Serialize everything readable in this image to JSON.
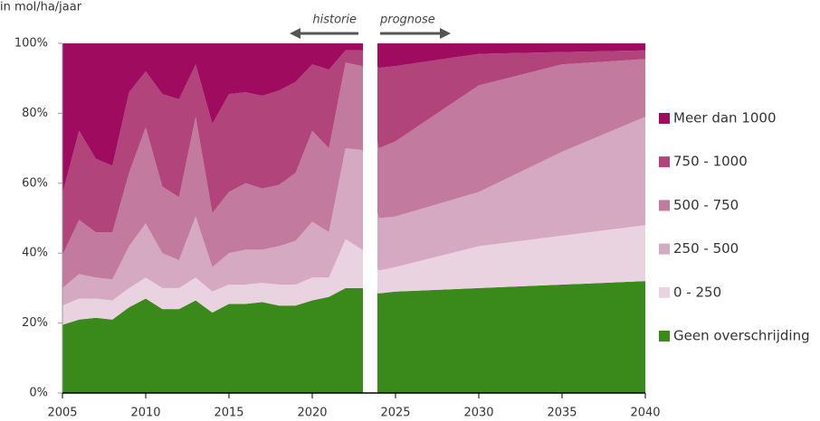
{
  "chart_data": {
    "type": "stacked_area",
    "y_axis_label": "in mol/ha/jaar",
    "annotations": [
      "historie",
      "prognose"
    ],
    "x": [
      2005,
      2006,
      2007,
      2008,
      2009,
      2010,
      2011,
      2012,
      2013,
      2014,
      2015,
      2016,
      2017,
      2018,
      2019,
      2020,
      2021,
      2022,
      2023,
      2024,
      2025,
      2030,
      2035,
      2040
    ],
    "xlim": [
      2005,
      2040
    ],
    "xticks": [
      2005,
      2010,
      2015,
      2020,
      2025,
      2030,
      2035,
      2040
    ],
    "ylim": [
      0,
      100
    ],
    "yticks": [
      {
        "value": 0,
        "label": "0%"
      },
      {
        "value": 20,
        "label": "20%"
      },
      {
        "value": 40,
        "label": "40%"
      },
      {
        "value": 60,
        "label": "60%"
      },
      {
        "value": 80,
        "label": "80%"
      },
      {
        "value": 100,
        "label": "100%"
      }
    ],
    "series": [
      {
        "name": "Geen overschrijding",
        "color": "#3a8a1b",
        "values": [
          19.5,
          21,
          21.5,
          21,
          24.5,
          27,
          24,
          24,
          26.5,
          23,
          25.5,
          25.5,
          26,
          25,
          25,
          26.5,
          27.5,
          30,
          30,
          28.5,
          29,
          30,
          31,
          32
        ]
      },
      {
        "name": "0 - 250",
        "color": "#ead3e0",
        "values": [
          5.5,
          6,
          5.5,
          5.5,
          5.5,
          6,
          6,
          6,
          6.5,
          6,
          5.5,
          5.5,
          5.5,
          6,
          6,
          6.5,
          5.5,
          14,
          11,
          6.5,
          7,
          12,
          14,
          16
        ]
      },
      {
        "name": "250 - 500",
        "color": "#d6a9c3",
        "values": [
          5,
          7,
          6,
          6,
          12,
          15.5,
          10,
          8,
          17.5,
          7,
          9,
          10,
          9.5,
          11,
          12.5,
          16,
          13,
          26,
          28.5,
          15,
          14.5,
          15.5,
          24,
          31
        ]
      },
      {
        "name": "500 - 750",
        "color": "#c27a9f",
        "values": [
          9.5,
          15.5,
          13,
          13.5,
          21,
          27.5,
          19,
          18,
          28.5,
          15.5,
          17.5,
          19,
          17.5,
          17.5,
          19.5,
          26,
          24,
          24.5,
          24,
          20,
          21.5,
          30.5,
          25,
          16.5
        ]
      },
      {
        "name": "750 - 1000",
        "color": "#b1447a",
        "values": [
          17.5,
          25.5,
          21,
          19,
          23,
          16,
          26.5,
          28,
          15,
          25.5,
          28,
          26,
          26.5,
          27,
          26,
          19,
          22.5,
          3.5,
          4.5,
          23,
          21.5,
          9,
          3.5,
          2.5
        ]
      },
      {
        "name": "Meer dan 1000",
        "color": "#9e0b5f",
        "values": [
          43,
          25,
          33,
          35,
          14,
          8,
          14.5,
          16,
          6,
          23,
          14.5,
          14,
          15,
          13.5,
          11,
          6,
          7.5,
          2,
          2,
          7,
          6.5,
          3,
          2.5,
          2
        ]
      }
    ]
  }
}
